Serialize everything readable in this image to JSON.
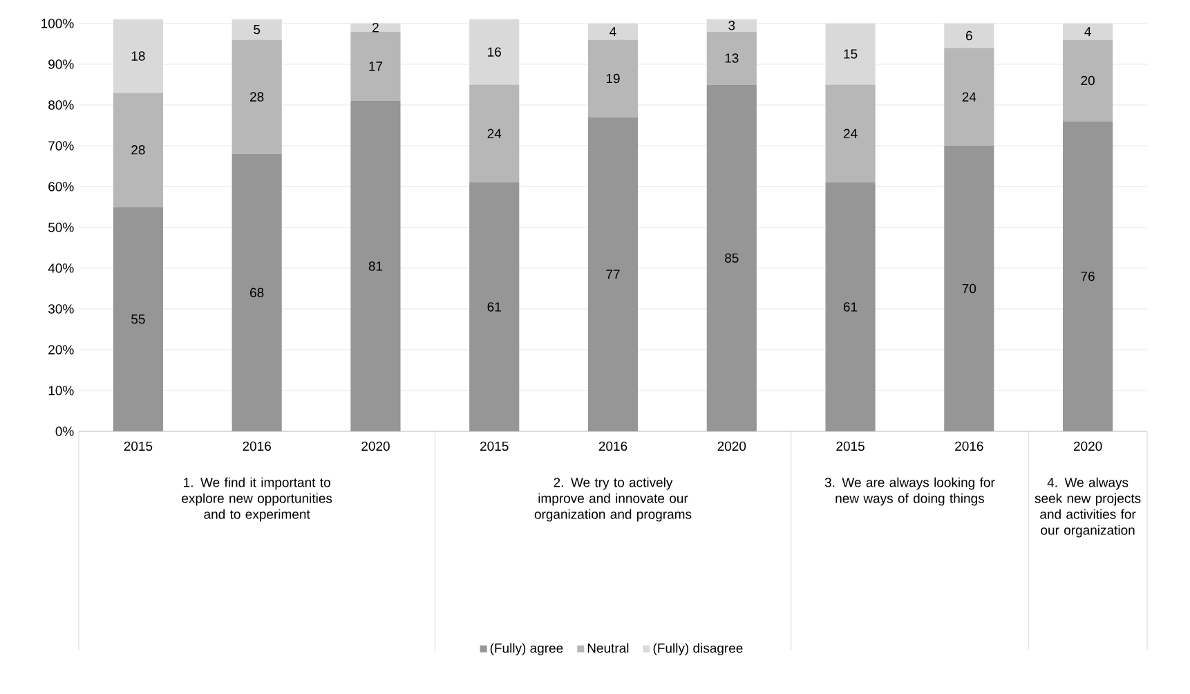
{
  "chart_data": {
    "type": "bar",
    "stacked": true,
    "categories": [
      "2015",
      "2016",
      "2020",
      "2015",
      "2016",
      "2020",
      "2015",
      "2016",
      "2020"
    ],
    "series": [
      {
        "name": "(Fully) agree",
        "color": "#969696",
        "values": [
          55,
          68,
          81,
          61,
          77,
          85,
          61,
          70,
          76
        ]
      },
      {
        "name": "Neutral",
        "color": "#b7b7b7",
        "values": [
          28,
          28,
          17,
          24,
          19,
          13,
          24,
          24,
          20
        ]
      },
      {
        "name": "(Fully) disagree",
        "color": "#d9d9d9",
        "values": [
          18,
          5,
          2,
          16,
          4,
          3,
          15,
          6,
          4
        ]
      }
    ],
    "ylim": [
      0,
      101
    ],
    "yticks": [
      {
        "value": 0,
        "label": "0%"
      },
      {
        "value": 10,
        "label": "10%"
      },
      {
        "value": 20,
        "label": "20%"
      },
      {
        "value": 30,
        "label": "30%"
      },
      {
        "value": 40,
        "label": "40%"
      },
      {
        "value": 50,
        "label": "50%"
      },
      {
        "value": 60,
        "label": "60%"
      },
      {
        "value": 70,
        "label": "70%"
      },
      {
        "value": 80,
        "label": "80%"
      },
      {
        "value": 90,
        "label": "90%"
      },
      {
        "value": 100,
        "label": "100%"
      }
    ],
    "annotations": [
      "1. We find it important to explore new opportunities and to experiment",
      "2. We try to actively improve and innovate our organization and programs",
      "3. We are always looking for new ways of doing things",
      "4. We always seek new projects and activities for our organization"
    ],
    "grid": "y",
    "legend": "bottom",
    "data_labels": true
  }
}
